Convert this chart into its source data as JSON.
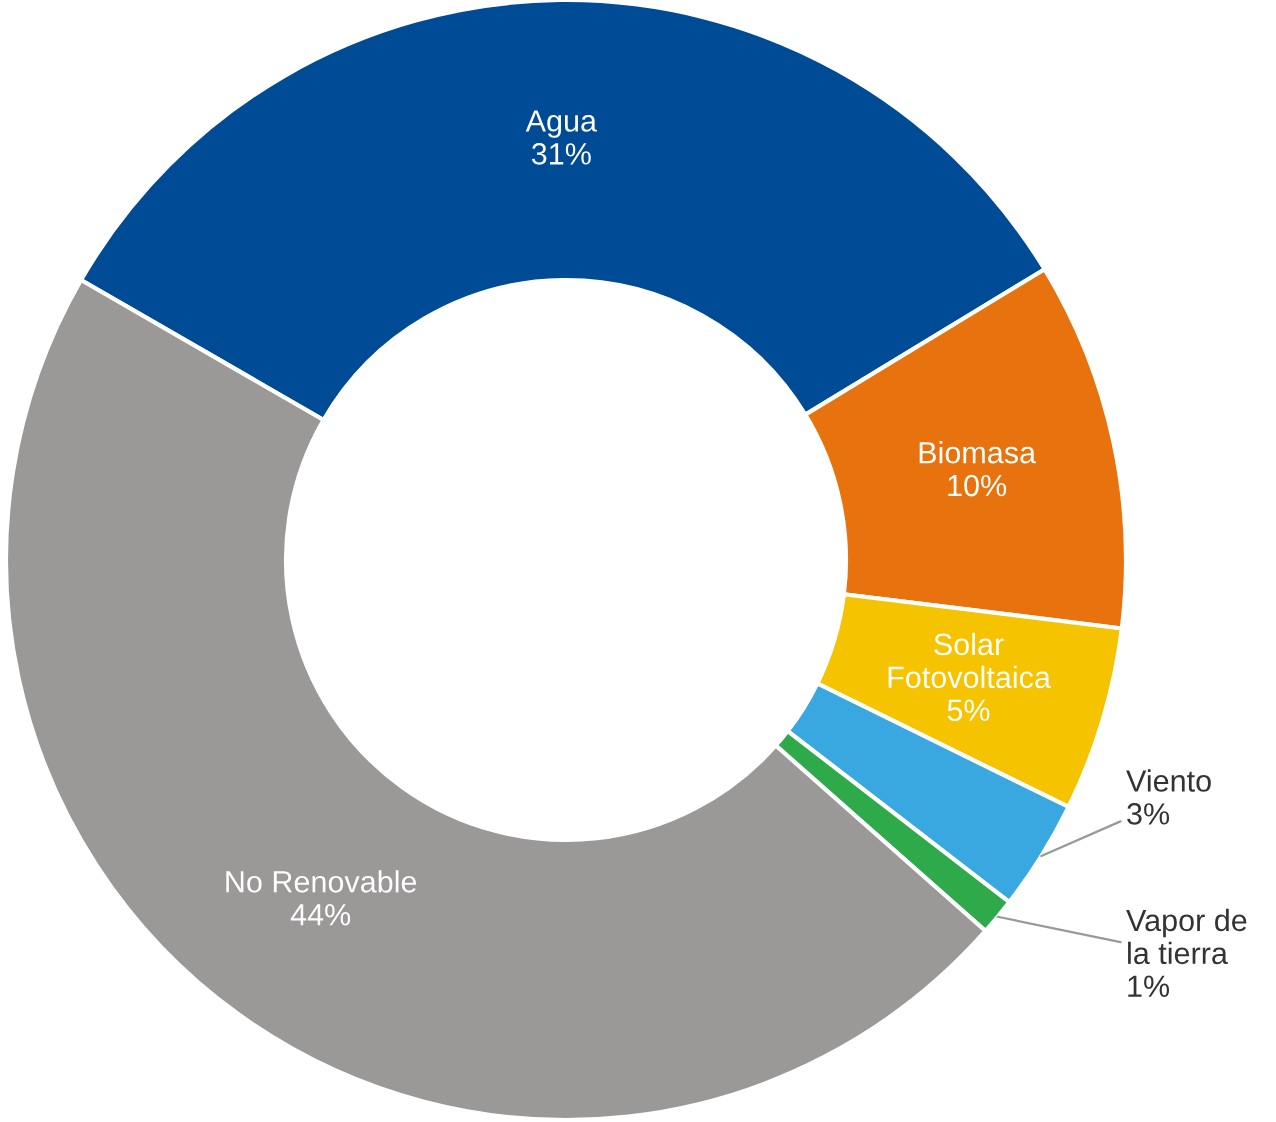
{
  "chart_data": {
    "type": "donut",
    "categories": [
      "Agua",
      "Biomasa",
      "Solar Fotovoltaica",
      "Viento",
      "Vapor de la tierra",
      "No Renovable"
    ],
    "values": [
      31,
      10,
      5,
      3,
      1,
      44
    ],
    "value_labels": [
      "31%",
      "10%",
      "5%",
      "3%",
      "1%",
      "44%"
    ],
    "colors": [
      "#004b96",
      "#e8730e",
      "#f5c300",
      "#3aa8e0",
      "#2eaa4a",
      "#9b9898"
    ],
    "legend": false
  }
}
